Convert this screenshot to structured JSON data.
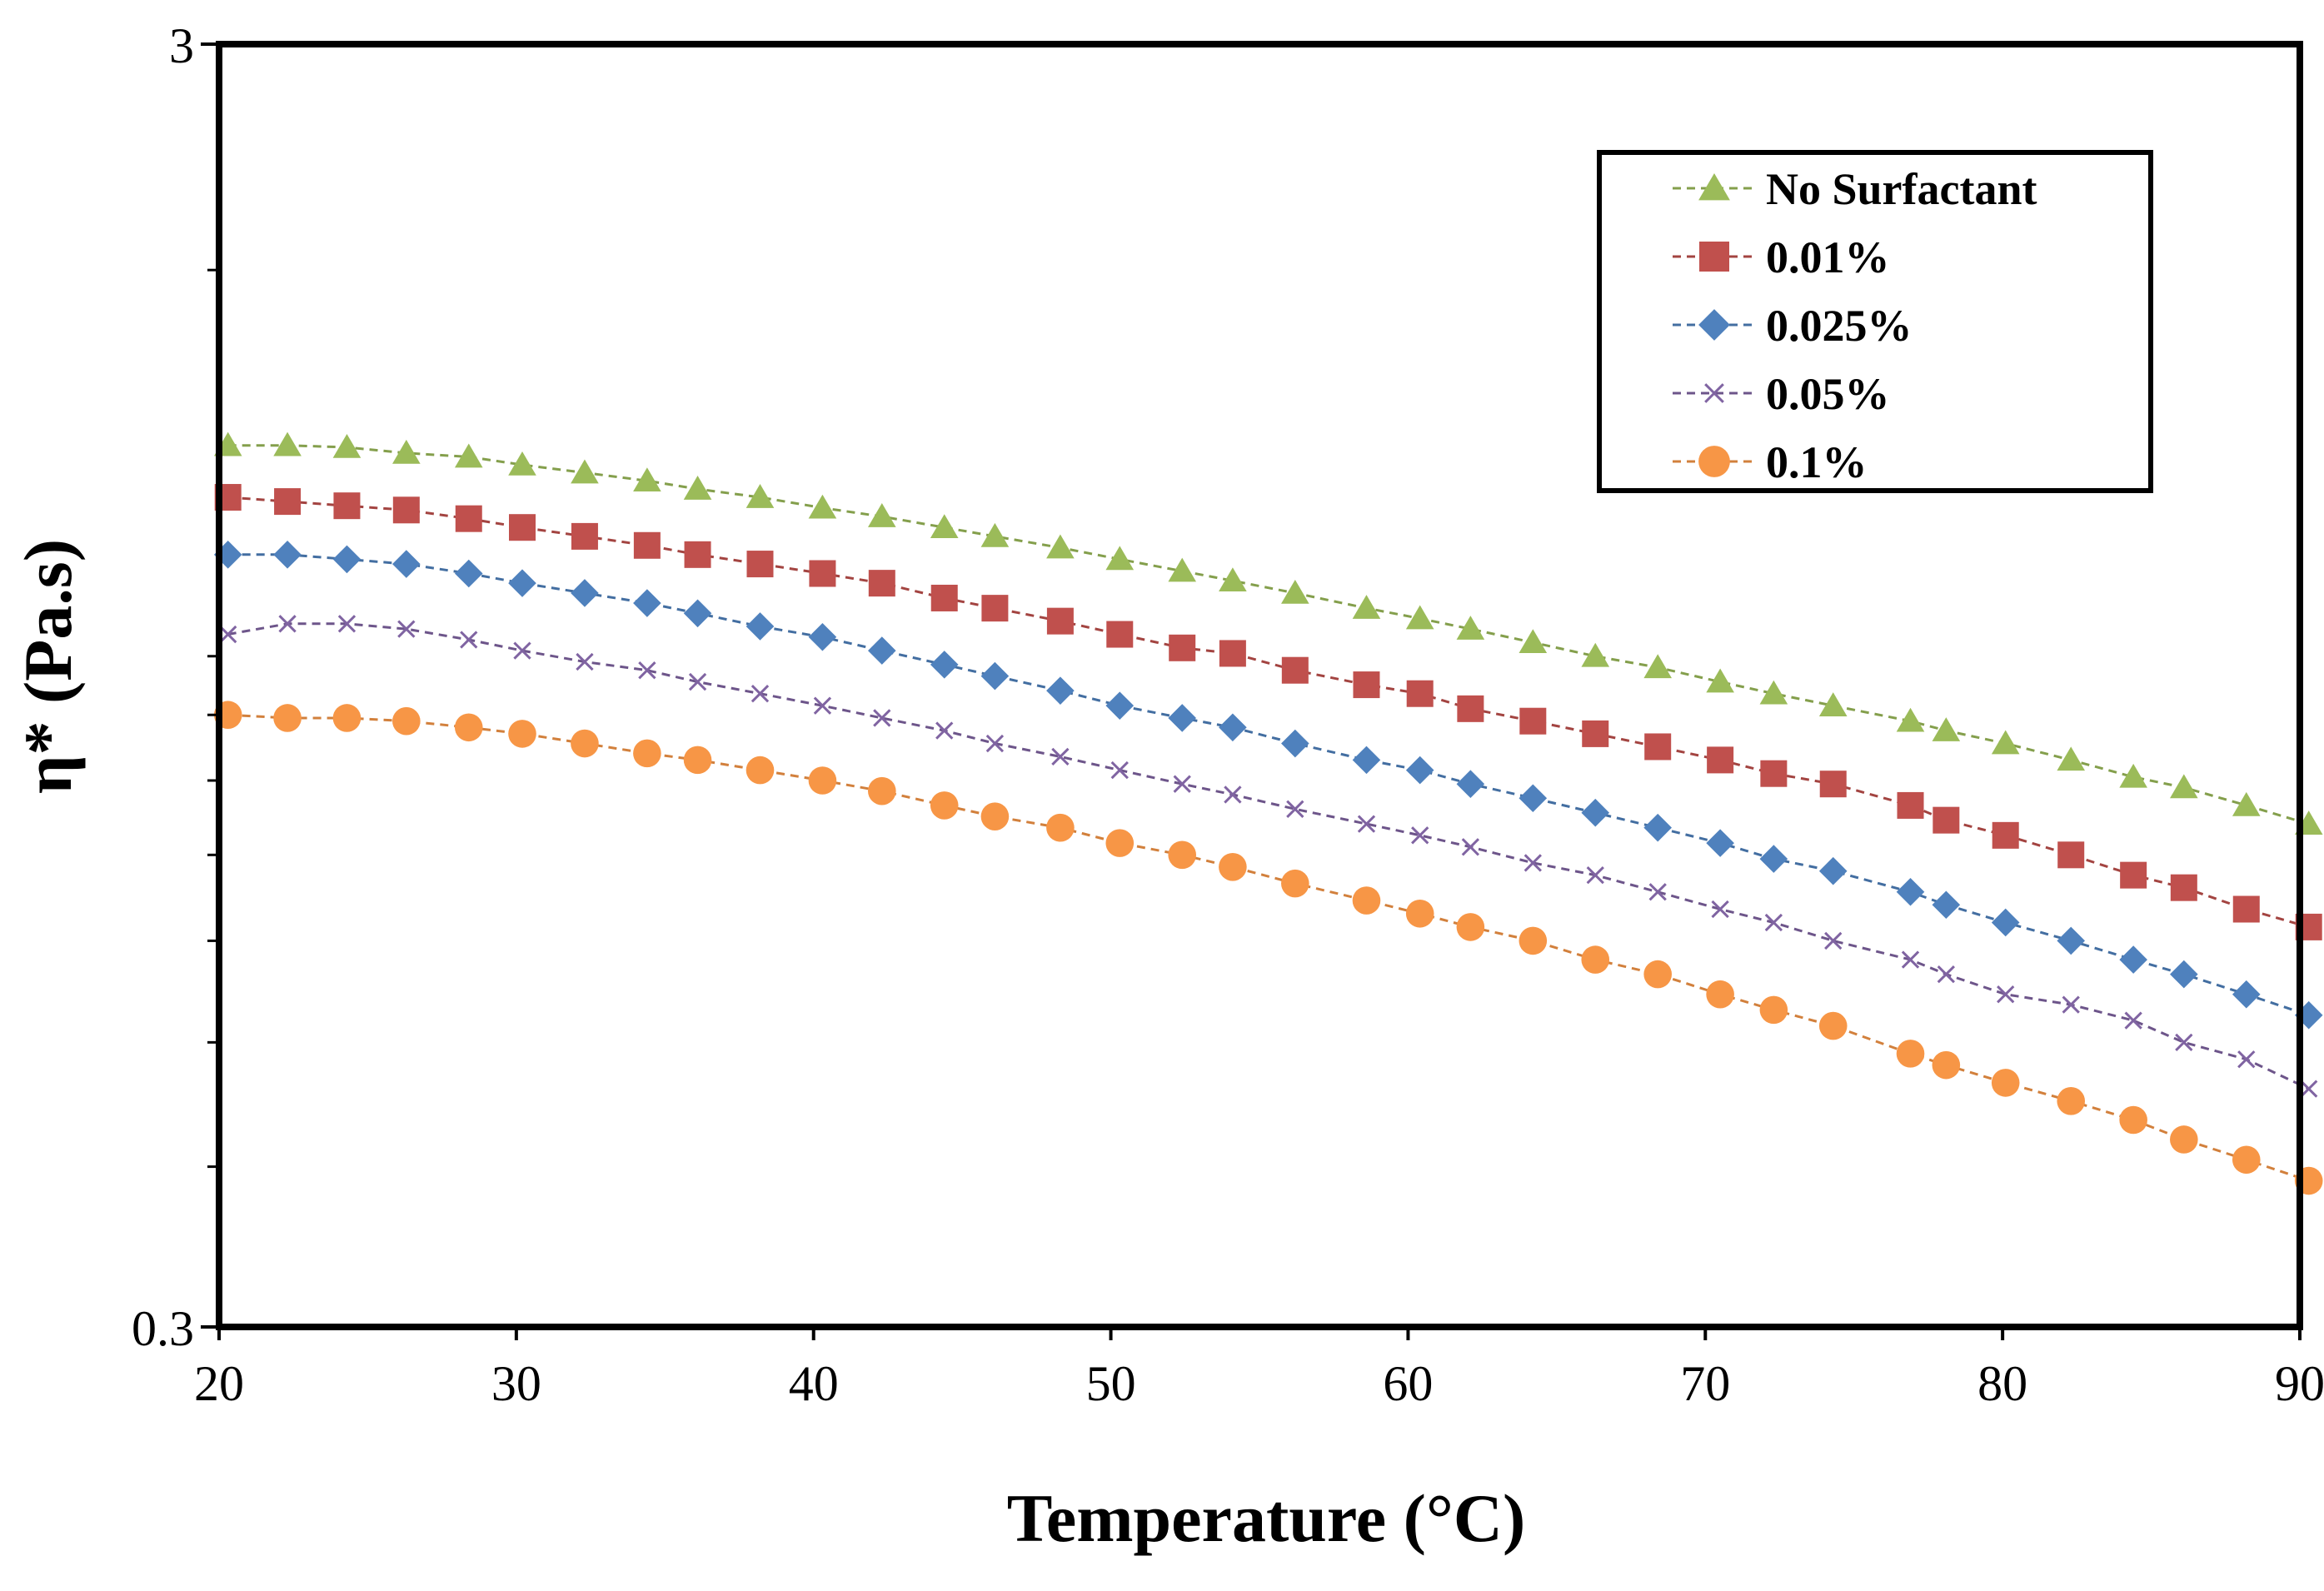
{
  "chart_data": {
    "type": "scatter",
    "title": "",
    "xlabel": "Temperature (°C)",
    "ylabel": "η* (Pa.s)",
    "xlim": [
      20,
      90
    ],
    "ylim": [
      0.3,
      3
    ],
    "yscale": "log",
    "grid": false,
    "legend_position": "top-right",
    "x_ticks": [
      "20",
      "30",
      "40",
      "50",
      "60",
      "70",
      "80",
      "90"
    ],
    "y_ticks": [
      "3",
      "0.3"
    ],
    "x": [
      20.3,
      22.3,
      24.3,
      26.3,
      28.4,
      30.2,
      32.3,
      34.4,
      36.1,
      38.2,
      40.3,
      42.3,
      44.4,
      46.1,
      48.3,
      50.3,
      52.4,
      54.1,
      56.2,
      58.6,
      60.4,
      62.1,
      64.2,
      66.3,
      68.4,
      70.5,
      72.3,
      74.3,
      76.9,
      78.1,
      80.1,
      82.3,
      84.4,
      86.1,
      88.2,
      90.3
    ],
    "series": [
      {
        "name": "No Surfactant",
        "marker": "triangle",
        "color": "#9BBB59",
        "values": [
          1.46,
          1.46,
          1.455,
          1.44,
          1.43,
          1.41,
          1.39,
          1.37,
          1.35,
          1.33,
          1.305,
          1.285,
          1.26,
          1.24,
          1.215,
          1.19,
          1.165,
          1.145,
          1.12,
          1.09,
          1.07,
          1.05,
          1.025,
          1.0,
          0.98,
          0.955,
          0.935,
          0.915,
          0.89,
          0.875,
          0.855,
          0.83,
          0.805,
          0.79,
          0.765,
          0.74
        ]
      },
      {
        "name": "0.01%",
        "marker": "square",
        "color": "#C0504D",
        "values": [
          1.33,
          1.32,
          1.31,
          1.3,
          1.28,
          1.26,
          1.24,
          1.22,
          1.2,
          1.18,
          1.16,
          1.14,
          1.11,
          1.09,
          1.065,
          1.04,
          1.015,
          1.005,
          0.975,
          0.95,
          0.935,
          0.91,
          0.89,
          0.87,
          0.85,
          0.83,
          0.81,
          0.795,
          0.765,
          0.745,
          0.725,
          0.7,
          0.675,
          0.66,
          0.635,
          0.615
        ]
      },
      {
        "name": "0.025%",
        "marker": "diamond",
        "color": "#4F81BD",
        "values": [
          1.2,
          1.2,
          1.19,
          1.18,
          1.16,
          1.14,
          1.12,
          1.1,
          1.08,
          1.055,
          1.035,
          1.01,
          0.985,
          0.965,
          0.94,
          0.915,
          0.895,
          0.88,
          0.855,
          0.83,
          0.815,
          0.795,
          0.775,
          0.755,
          0.735,
          0.715,
          0.695,
          0.68,
          0.655,
          0.64,
          0.62,
          0.6,
          0.58,
          0.565,
          0.545,
          0.525
        ]
      },
      {
        "name": "0.05%",
        "marker": "x",
        "color": "#8064A2",
        "values": [
          1.04,
          1.06,
          1.06,
          1.05,
          1.03,
          1.01,
          0.99,
          0.975,
          0.955,
          0.935,
          0.915,
          0.895,
          0.875,
          0.855,
          0.835,
          0.815,
          0.795,
          0.78,
          0.76,
          0.74,
          0.725,
          0.71,
          0.69,
          0.675,
          0.655,
          0.635,
          0.62,
          0.6,
          0.58,
          0.565,
          0.545,
          0.535,
          0.52,
          0.5,
          0.485,
          0.46
        ]
      },
      {
        "name": "0.1%",
        "marker": "circle",
        "color": "#F79646",
        "values": [
          0.9,
          0.895,
          0.895,
          0.89,
          0.88,
          0.87,
          0.855,
          0.84,
          0.83,
          0.815,
          0.8,
          0.785,
          0.765,
          0.75,
          0.735,
          0.715,
          0.7,
          0.685,
          0.665,
          0.645,
          0.63,
          0.615,
          0.6,
          0.58,
          0.565,
          0.545,
          0.53,
          0.515,
          0.49,
          0.48,
          0.465,
          0.45,
          0.435,
          0.42,
          0.405,
          0.39
        ]
      }
    ]
  }
}
